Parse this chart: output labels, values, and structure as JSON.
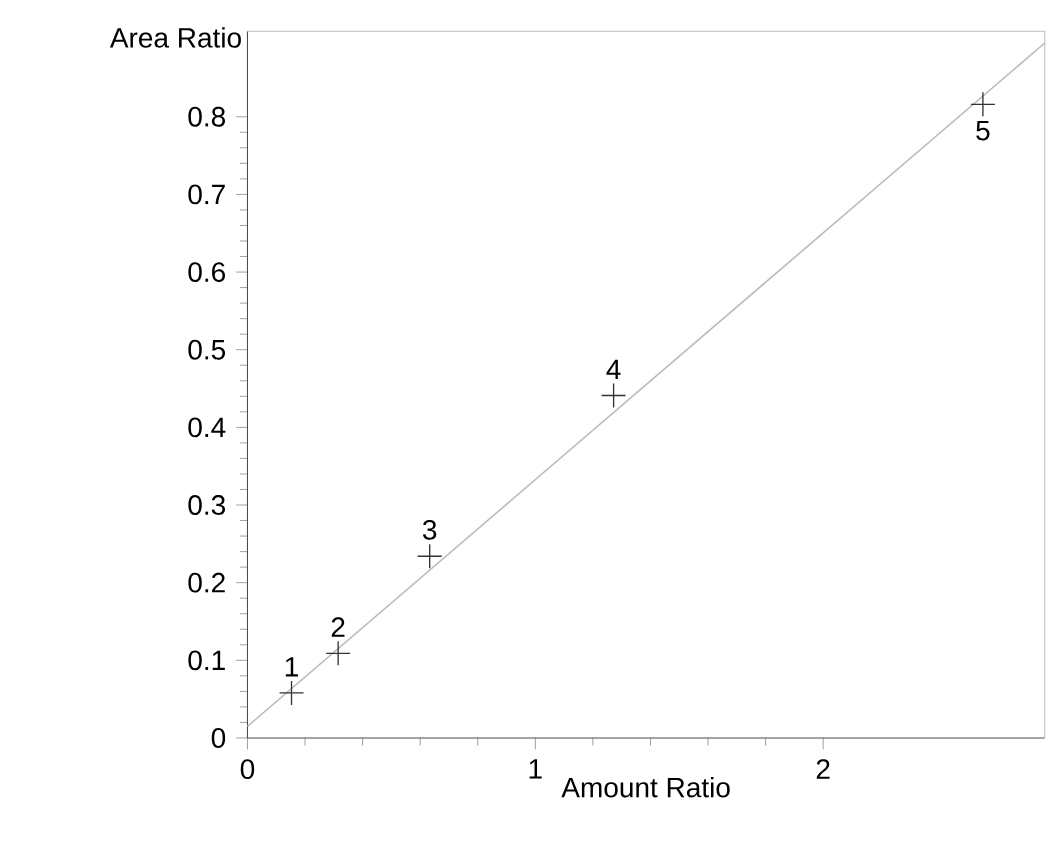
{
  "chart_data": {
    "type": "scatter",
    "xlabel": "Amount Ratio",
    "ylabel": "Area Ratio",
    "series": [
      {
        "color": "#333333",
        "x": [
          0.153,
          0.315,
          0.633,
          1.272,
          2.555
        ],
        "values": [
          0.058,
          0.109,
          0.234,
          0.441,
          0.816
        ],
        "marker": "cross"
      },
      {
        "type": "line",
        "color": "#bbbbbb",
        "x": [
          0,
          2.77
        ],
        "values": [
          0.015,
          0.895
        ],
        "marker": "none",
        "line_style": "solid"
      }
    ],
    "annotations": [
      {
        "text": "1",
        "x": 0.153,
        "y": 0.058
      },
      {
        "text": "2",
        "x": 0.315,
        "y": 0.109
      },
      {
        "text": "3",
        "x": 0.633,
        "y": 0.234
      },
      {
        "text": "4",
        "x": 1.272,
        "y": 0.441
      },
      {
        "text": "5",
        "x": 2.555,
        "y": 0.816
      }
    ],
    "xlim": [
      0,
      2.77
    ],
    "ylim": [
      0,
      0.91
    ],
    "xticks": [
      0,
      1,
      2
    ],
    "yticks": [
      0,
      0.1,
      0.2,
      0.3,
      0.4,
      0.5,
      0.6,
      0.7,
      0.8
    ]
  }
}
